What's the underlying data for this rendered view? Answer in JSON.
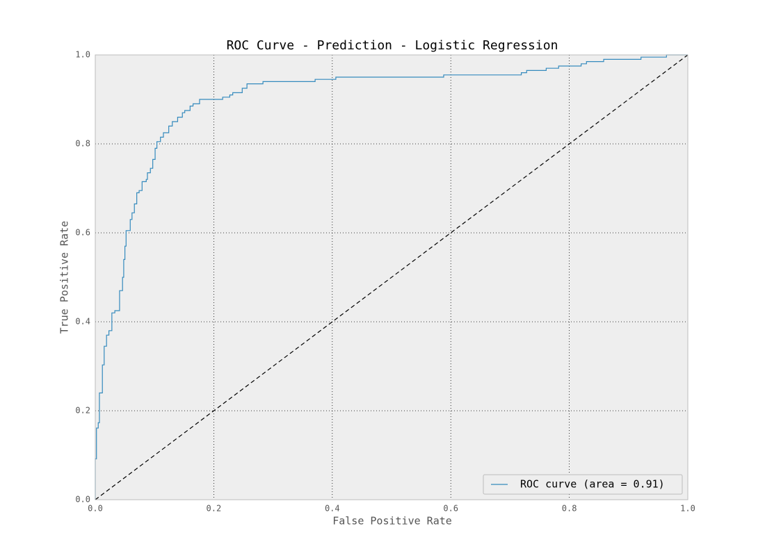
{
  "chart_data": {
    "type": "line",
    "title": "ROC Curve - Prediction - Logistic Regression",
    "xlabel": "False Positive Rate",
    "ylabel": "True Positive Rate",
    "xlim": [
      0,
      1
    ],
    "ylim": [
      0,
      1
    ],
    "xticks": [
      {
        "value": 0,
        "label": "0.0"
      },
      0.2,
      0.4,
      0.6,
      0.8,
      {
        "value": 1,
        "label": "1.0"
      }
    ],
    "yticks": [
      {
        "value": 0,
        "label": "0.0"
      },
      0.2,
      0.4,
      0.6,
      0.8,
      {
        "value": 1,
        "label": "1.0"
      }
    ],
    "grid": true,
    "legend": "lower right",
    "series": [
      {
        "name": "ROC curve (area = 0.91)",
        "color": "#348abd",
        "dashed": false,
        "x": [
          0,
          0,
          0.002,
          0.002,
          0.005,
          0.005,
          0.007,
          0.007,
          0.012,
          0.012,
          0.015,
          0.015,
          0.019,
          0.019,
          0.023,
          0.023,
          0.028,
          0.028,
          0.033,
          0.033,
          0.041,
          0.041,
          0.046,
          0.046,
          0.048,
          0.048,
          0.05,
          0.05,
          0.052,
          0.052,
          0.059,
          0.059,
          0.062,
          0.062,
          0.066,
          0.066,
          0.07,
          0.07,
          0.074,
          0.074,
          0.079,
          0.079,
          0.086,
          0.086,
          0.088,
          0.088,
          0.093,
          0.093,
          0.097,
          0.097,
          0.101,
          0.101,
          0.104,
          0.104,
          0.11,
          0.11,
          0.115,
          0.115,
          0.124,
          0.124,
          0.13,
          0.13,
          0.139,
          0.139,
          0.147,
          0.147,
          0.151,
          0.151,
          0.16,
          0.16,
          0.165,
          0.165,
          0.176,
          0.176,
          0.215,
          0.215,
          0.227,
          0.227,
          0.232,
          0.232,
          0.248,
          0.248,
          0.256,
          0.256,
          0.283,
          0.283,
          0.371,
          0.371,
          0.406,
          0.406,
          0.588,
          0.588,
          0.719,
          0.719,
          0.728,
          0.728,
          0.761,
          0.761,
          0.782,
          0.782,
          0.82,
          0.82,
          0.829,
          0.829,
          0.858,
          0.858,
          0.921,
          0.921,
          0.964,
          0.964,
          1
        ],
        "values": [
          0,
          0.092,
          0.092,
          0.161,
          0.161,
          0.173,
          0.173,
          0.24,
          0.24,
          0.303,
          0.303,
          0.345,
          0.345,
          0.37,
          0.37,
          0.38,
          0.38,
          0.42,
          0.42,
          0.425,
          0.425,
          0.47,
          0.47,
          0.5,
          0.5,
          0.54,
          0.54,
          0.57,
          0.57,
          0.605,
          0.605,
          0.63,
          0.63,
          0.645,
          0.645,
          0.665,
          0.665,
          0.69,
          0.69,
          0.695,
          0.695,
          0.715,
          0.715,
          0.72,
          0.72,
          0.735,
          0.735,
          0.745,
          0.745,
          0.765,
          0.765,
          0.79,
          0.79,
          0.805,
          0.805,
          0.815,
          0.815,
          0.825,
          0.825,
          0.84,
          0.84,
          0.85,
          0.85,
          0.86,
          0.86,
          0.87,
          0.87,
          0.875,
          0.875,
          0.885,
          0.885,
          0.89,
          0.89,
          0.9,
          0.9,
          0.905,
          0.905,
          0.91,
          0.91,
          0.915,
          0.915,
          0.925,
          0.925,
          0.935,
          0.935,
          0.94,
          0.94,
          0.945,
          0.945,
          0.95,
          0.95,
          0.955,
          0.955,
          0.96,
          0.96,
          0.965,
          0.965,
          0.97,
          0.97,
          0.975,
          0.975,
          0.98,
          0.98,
          0.985,
          0.985,
          0.99,
          0.99,
          0.995,
          0.995,
          1,
          1
        ]
      },
      {
        "color": "#000000",
        "dashed": true,
        "x": [
          0,
          1
        ],
        "values": [
          0,
          1
        ]
      }
    ]
  }
}
